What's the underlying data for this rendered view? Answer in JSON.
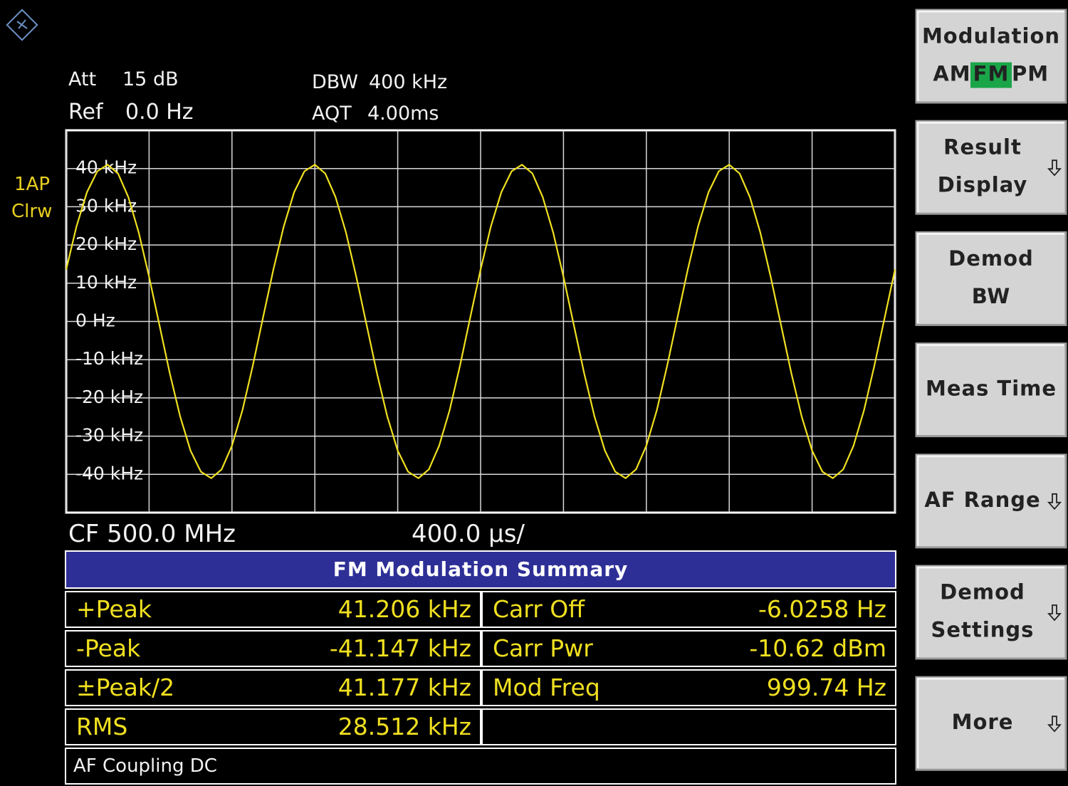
{
  "header": {
    "att_label": "Att",
    "att": "15 dB",
    "ref_label": "Ref",
    "ref": "0.0 Hz",
    "dbw_label": "DBW",
    "dbw": "400 kHz",
    "aqt_label": "AQT",
    "aqt": "4.00ms",
    "trace_label": "1AP",
    "trace_mode": "Clrw"
  },
  "chart_data": {
    "type": "line",
    "color": "#f0e020",
    "grid": true,
    "xlim": [
      0,
      4000
    ],
    "xticks": [
      0,
      400,
      800,
      1200,
      1600,
      2000,
      2400,
      2800,
      3200,
      3600,
      4000
    ],
    "ylim": [
      -50,
      50
    ],
    "yticks": [
      {
        "value": 40,
        "label": "40 kHz"
      },
      {
        "value": 30,
        "label": "30 kHz"
      },
      {
        "value": 20,
        "label": "20 kHz"
      },
      {
        "value": 10,
        "label": "10 kHz"
      },
      {
        "value": 0,
        "label": "0 Hz"
      },
      {
        "value": -10,
        "label": "-10 kHz"
      },
      {
        "value": -20,
        "label": "-20 kHz"
      },
      {
        "value": -30,
        "label": "-30 kHz"
      },
      {
        "value": -40,
        "label": "-40 kHz"
      }
    ],
    "x": [
      0,
      50,
      100,
      150,
      200,
      250,
      300,
      350,
      400,
      450,
      500,
      550,
      600,
      650,
      700,
      750,
      800,
      850,
      900,
      950,
      1000,
      1050,
      1100,
      1150,
      1200,
      1250,
      1300,
      1350,
      1400,
      1450,
      1500,
      1550,
      1600,
      1650,
      1700,
      1750,
      1800,
      1850,
      1900,
      1950,
      2000,
      2050,
      2100,
      2150,
      2200,
      2250,
      2300,
      2350,
      2400,
      2450,
      2500,
      2550,
      2600,
      2650,
      2700,
      2750,
      2800,
      2850,
      2900,
      2950,
      3000,
      3050,
      3100,
      3150,
      3200,
      3250,
      3300,
      3350,
      3400,
      3450,
      3500,
      3550,
      3600,
      3650,
      3700,
      3750,
      3800,
      3850,
      3900,
      3950,
      4000
    ],
    "values": [
      13.6,
      24.9,
      33.8,
      39.3,
      41.0,
      38.7,
      32.5,
      23.3,
      11.7,
      -1.0,
      -13.6,
      -24.9,
      -33.8,
      -39.3,
      -41.0,
      -38.7,
      -32.5,
      -23.3,
      -11.7,
      1.0,
      13.6,
      24.9,
      33.8,
      39.3,
      41.0,
      38.7,
      32.5,
      23.3,
      11.7,
      -1.0,
      -13.6,
      -24.9,
      -33.8,
      -39.3,
      -41.0,
      -38.7,
      -32.5,
      -23.3,
      -11.7,
      1.0,
      13.6,
      24.9,
      33.8,
      39.3,
      41.0,
      38.7,
      32.5,
      23.3,
      11.7,
      -1.0,
      -13.6,
      -24.9,
      -33.8,
      -39.3,
      -41.0,
      -38.7,
      -32.5,
      -23.3,
      -11.7,
      1.0,
      13.6,
      24.9,
      33.8,
      39.3,
      41.0,
      38.7,
      32.5,
      23.3,
      11.7,
      -1.0,
      -13.6,
      -24.9,
      -33.8,
      -39.3,
      -41.0,
      -38.7,
      -32.5,
      -23.3,
      -11.7,
      1.0,
      13.6
    ]
  },
  "footer": {
    "center_frequency": "CF 500.0 MHz",
    "sweep": "400.0 µs/"
  },
  "table": {
    "title": "FM Modulation Summary",
    "rows": [
      [
        "+Peak",
        "41.206 kHz",
        "Carr Off",
        "-6.0258 Hz"
      ],
      [
        "-Peak",
        "-41.147 kHz",
        "Carr Pwr",
        "-10.62 dBm"
      ],
      [
        "±Peak/2",
        "41.177 kHz",
        "Mod Freq",
        "999.74 Hz"
      ],
      [
        "RMS",
        "28.512 kHz"
      ]
    ],
    "note": "AF Coupling DC"
  },
  "softkeys": [
    {
      "lines": [
        "Modulation"
      ],
      "options": [
        "AM",
        "FM",
        "PM"
      ],
      "selected": 1
    },
    {
      "lines": [
        "Result",
        "Display"
      ],
      "submenu": true
    },
    {
      "lines": [
        "Demod",
        "BW"
      ]
    },
    {
      "lines": [
        "Meas Time"
      ]
    },
    {
      "lines": [
        "AF Range"
      ],
      "submenu": true
    },
    {
      "lines": [
        "Demod",
        "Settings"
      ],
      "submenu": true
    },
    {
      "lines": [
        "More"
      ],
      "submenu": true
    }
  ]
}
